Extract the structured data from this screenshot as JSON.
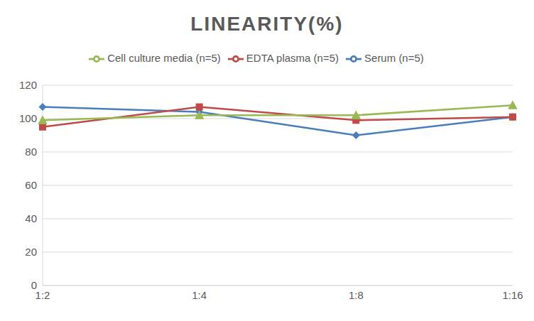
{
  "chart_data": {
    "type": "line",
    "title": "LINEARITY(%)",
    "categories": [
      "1:2",
      "1:4",
      "1:8",
      "1:16"
    ],
    "series": [
      {
        "name": "Serum (n=5)",
        "color": "#4a7ebb",
        "marker": "diamond",
        "values": [
          107,
          104,
          90,
          101
        ]
      },
      {
        "name": "EDTA plasma (n=5)",
        "color": "#be4b48",
        "marker": "square",
        "values": [
          95,
          107,
          99,
          101
        ]
      },
      {
        "name": "Cell culture media (n=5)",
        "color": "#98b954",
        "marker": "triangle",
        "values": [
          99,
          102,
          102,
          108
        ]
      }
    ],
    "ylim": [
      0,
      120
    ],
    "yticks": [
      0,
      20,
      40,
      60,
      80,
      100,
      120
    ],
    "grid": true,
    "legend": "top"
  }
}
